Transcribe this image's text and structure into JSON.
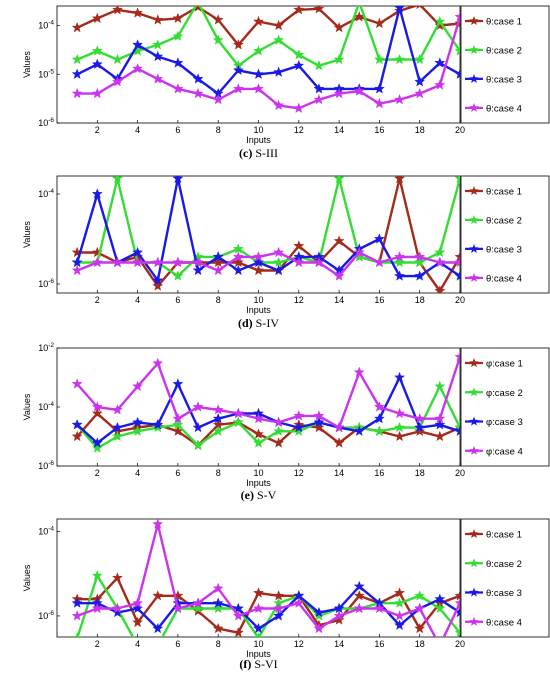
{
  "chart_data": [
    {
      "type": "line",
      "caption_letter": "(c)",
      "caption_rest": " S-III",
      "xlabel": "Inputs",
      "ylabel": "Values",
      "xlim": [
        0,
        20
      ],
      "ylim_exp": [
        -6,
        -3.6
      ],
      "yscale": "log",
      "y_ticks": [
        {
          "value": 1e-06,
          "base": "10",
          "exp": "-6"
        },
        {
          "value": 1e-05,
          "base": "10",
          "exp": "-5"
        },
        {
          "value": 0.0001,
          "base": "10",
          "exp": "-4"
        }
      ],
      "x_ticks": [
        2,
        4,
        6,
        8,
        10,
        12,
        14,
        16,
        18,
        20
      ],
      "legend_position": "right",
      "x": [
        1,
        2,
        3,
        4,
        5,
        6,
        7,
        8,
        9,
        10,
        11,
        12,
        13,
        14,
        15,
        16,
        17,
        18,
        19,
        20
      ],
      "series": [
        {
          "name": "θ:case 1",
          "color": "#a52a1a",
          "values": [
            9e-05,
            0.00014,
            0.00021,
            0.00018,
            0.00013,
            0.00014,
            0.00024,
            0.00013,
            4e-05,
            0.00012,
            0.0001,
            0.00021,
            0.00022,
            9e-05,
            0.00015,
            0.00011,
            0.0002,
            0.00027,
            0.0001,
            0.00011
          ]
        },
        {
          "name": "θ:case 2",
          "color": "#33dd33",
          "values": [
            2e-05,
            3e-05,
            2e-05,
            3e-05,
            4e-05,
            6e-05,
            0.0003,
            5e-05,
            1.5e-05,
            3e-05,
            5e-05,
            2.5e-05,
            1.5e-05,
            2e-05,
            0.0003,
            2e-05,
            2e-05,
            2e-05,
            0.00012,
            3e-05
          ]
        },
        {
          "name": "θ:case 3",
          "color": "#1a1ae6",
          "values": [
            1e-05,
            1.6e-05,
            8e-06,
            4e-05,
            2.3e-05,
            1.7e-05,
            8e-06,
            4e-06,
            1.2e-05,
            1e-05,
            1.1e-05,
            1.5e-05,
            5e-06,
            5e-06,
            5e-06,
            5e-06,
            0.00023,
            7e-06,
            1.7e-05,
            1e-05
          ]
        },
        {
          "name": "θ:case 4",
          "color": "#cc33ee",
          "values": [
            4e-06,
            4e-06,
            7e-06,
            1.3e-05,
            8e-06,
            5e-06,
            4e-06,
            3e-06,
            5e-06,
            5e-06,
            2.3e-06,
            2e-06,
            3e-06,
            4e-06,
            4.5e-06,
            2.5e-06,
            3e-06,
            4e-06,
            6e-06,
            0.00015
          ]
        }
      ]
    },
    {
      "type": "line",
      "caption_letter": "(d)",
      "caption_rest": " S-IV",
      "xlabel": "Inputs",
      "ylabel": "Values",
      "xlim": [
        0,
        20
      ],
      "ylim_exp": [
        -6.2,
        -3.6
      ],
      "yscale": "log",
      "y_ticks": [
        {
          "value": 1e-06,
          "base": "10",
          "exp": "-6"
        },
        {
          "value": 0.0001,
          "base": "10",
          "exp": "-4"
        }
      ],
      "x_ticks": [
        2,
        4,
        6,
        8,
        10,
        12,
        14,
        16,
        18,
        20
      ],
      "legend_position": "right",
      "x": [
        1,
        2,
        3,
        4,
        5,
        6,
        7,
        8,
        9,
        10,
        11,
        12,
        13,
        14,
        15,
        16,
        17,
        18,
        19,
        20
      ],
      "series": [
        {
          "name": "θ:case 1",
          "color": "#a52a1a",
          "values": [
            5e-06,
            5e-06,
            3e-06,
            4e-06,
            9e-07,
            3e-06,
            3e-06,
            3e-06,
            3e-06,
            2e-06,
            2e-06,
            7e-06,
            3e-06,
            9e-06,
            4e-06,
            3e-06,
            0.00022,
            3e-06,
            7e-07,
            4e-06
          ]
        },
        {
          "name": "θ:case 2",
          "color": "#33dd33",
          "values": [
            3e-06,
            3e-06,
            0.00022,
            3e-06,
            3e-06,
            1.5e-06,
            4e-06,
            4e-06,
            6e-06,
            3e-06,
            3e-06,
            4e-06,
            3e-06,
            0.00022,
            4e-06,
            3e-06,
            3e-06,
            3e-06,
            5e-06,
            0.00022
          ]
        },
        {
          "name": "θ:case 3",
          "color": "#1a1ae6",
          "values": [
            3e-06,
            0.0001,
            3e-06,
            5e-06,
            1.2e-06,
            0.00022,
            2e-06,
            4e-06,
            2e-06,
            3e-06,
            2e-06,
            4e-06,
            4e-06,
            2e-06,
            6e-06,
            1e-05,
            1.5e-06,
            1.5e-06,
            3e-06,
            1.5e-06
          ]
        },
        {
          "name": "θ:case 4",
          "color": "#cc33ee",
          "values": [
            2e-06,
            3e-06,
            3e-06,
            3e-06,
            3e-06,
            3e-06,
            3e-06,
            2e-06,
            4e-06,
            4e-06,
            5e-06,
            3e-06,
            3e-06,
            1.5e-06,
            5e-06,
            3e-06,
            4e-06,
            4e-06,
            3e-06,
            3e-06
          ]
        }
      ]
    },
    {
      "type": "line",
      "caption_letter": "(e)",
      "caption_rest": " S-V",
      "xlabel": "Inputs",
      "ylabel": "Values",
      "xlim": [
        0,
        20
      ],
      "ylim_exp": [
        -6,
        -2
      ],
      "yscale": "log",
      "y_ticks": [
        {
          "value": 1e-06,
          "base": "10",
          "exp": "-6"
        },
        {
          "value": 0.0001,
          "base": "10",
          "exp": "-4"
        },
        {
          "value": 0.01,
          "base": "10",
          "exp": "-2"
        }
      ],
      "x_ticks": [
        2,
        4,
        6,
        8,
        10,
        12,
        14,
        16,
        18,
        20
      ],
      "legend_position": "right",
      "x": [
        1,
        2,
        3,
        4,
        5,
        6,
        7,
        8,
        9,
        10,
        11,
        12,
        13,
        14,
        15,
        16,
        17,
        18,
        19,
        20
      ],
      "series": [
        {
          "name": "φ:case 1",
          "color": "#a52a1a",
          "values": [
            1e-05,
            6e-05,
            1.5e-05,
            2e-05,
            2.5e-05,
            1.5e-05,
            5e-06,
            2.5e-05,
            3e-05,
            1.2e-05,
            6e-06,
            2.5e-05,
            2e-05,
            6e-06,
            2e-05,
            1.5e-05,
            1e-05,
            1.5e-05,
            1e-05,
            2e-05
          ]
        },
        {
          "name": "φ:case 2",
          "color": "#33dd33",
          "values": [
            2.5e-05,
            4e-06,
            1e-05,
            1.5e-05,
            2e-05,
            2.5e-05,
            5e-06,
            1.5e-05,
            3e-05,
            6e-06,
            1.5e-05,
            1.5e-05,
            3e-05,
            2e-05,
            2e-05,
            1.5e-05,
            2e-05,
            2e-05,
            0.0005,
            2e-05
          ]
        },
        {
          "name": "φ:case 3",
          "color": "#1a1ae6",
          "values": [
            2.5e-05,
            6e-06,
            2e-05,
            3e-05,
            2.5e-05,
            0.0006,
            2e-05,
            4e-05,
            6e-05,
            6e-05,
            3e-05,
            2e-05,
            3e-05,
            2e-05,
            1.5e-05,
            4e-05,
            0.001,
            2e-05,
            2.5e-05,
            1.5e-05
          ]
        },
        {
          "name": "φ:case 4",
          "color": "#cc33ee",
          "values": [
            0.0006,
            0.0001,
            8e-05,
            0.0005,
            0.003,
            4e-05,
            0.0001,
            8e-05,
            6e-05,
            4e-05,
            3e-05,
            5e-05,
            5e-05,
            2e-05,
            0.0015,
            0.0001,
            6e-05,
            4e-05,
            4e-05,
            0.005
          ]
        }
      ]
    },
    {
      "type": "line",
      "caption_letter": "(f)",
      "caption_rest": " S-VI",
      "xlabel": "Inputs",
      "ylabel": "Values",
      "xlim": [
        0,
        20
      ],
      "ylim_exp": [
        -6.5,
        -3.7
      ],
      "yscale": "log",
      "y_ticks": [
        {
          "value": 1e-06,
          "base": "10",
          "exp": "-6"
        },
        {
          "value": 0.0001,
          "base": "10",
          "exp": "-4"
        }
      ],
      "x_ticks": [
        2,
        4,
        6,
        8,
        10,
        12,
        14,
        16,
        18,
        20
      ],
      "legend_position": "right",
      "x": [
        1,
        2,
        3,
        4,
        5,
        6,
        7,
        8,
        9,
        10,
        11,
        12,
        13,
        14,
        15,
        16,
        17,
        18,
        19,
        20
      ],
      "series": [
        {
          "name": "θ:case 1",
          "color": "#a52a1a",
          "values": [
            2.5e-06,
            2.5e-06,
            8e-06,
            7e-07,
            3e-06,
            3e-06,
            1.3e-06,
            5e-07,
            4e-07,
            3.5e-06,
            3e-06,
            3e-06,
            6e-07,
            8e-07,
            3e-06,
            2e-06,
            3.5e-06,
            5e-07,
            2e-06,
            3e-06
          ]
        },
        {
          "name": "θ:case 2",
          "color": "#33dd33",
          "values": [
            3e-07,
            9e-06,
            1.5e-06,
            2e-07,
            2e-07,
            1.5e-06,
            1.5e-06,
            1.5e-06,
            1.5e-06,
            3e-07,
            2e-06,
            3e-06,
            1e-06,
            1.5e-06,
            1.5e-06,
            2e-06,
            2e-06,
            3e-06,
            1.5e-06,
            4e-07
          ]
        },
        {
          "name": "θ:case 3",
          "color": "#1a1ae6",
          "values": [
            2e-06,
            2e-06,
            1.2e-06,
            1.5e-06,
            5e-07,
            2e-06,
            2e-06,
            2e-06,
            1.5e-06,
            5e-07,
            1e-06,
            3e-06,
            1.2e-06,
            1.5e-06,
            5e-06,
            2e-06,
            6e-07,
            1.5e-06,
            2.5e-06,
            1.2e-06
          ]
        },
        {
          "name": "θ:case 4",
          "color": "#cc33ee",
          "values": [
            1e-06,
            1.5e-06,
            1.5e-06,
            2e-06,
            0.00015,
            1.5e-06,
            2e-06,
            4.5e-06,
            1e-06,
            1.5e-06,
            1.5e-06,
            2e-06,
            5e-07,
            1e-06,
            1.5e-06,
            1.5e-06,
            1e-06,
            1.5e-06,
            2e-07,
            2e-06
          ]
        }
      ]
    }
  ]
}
